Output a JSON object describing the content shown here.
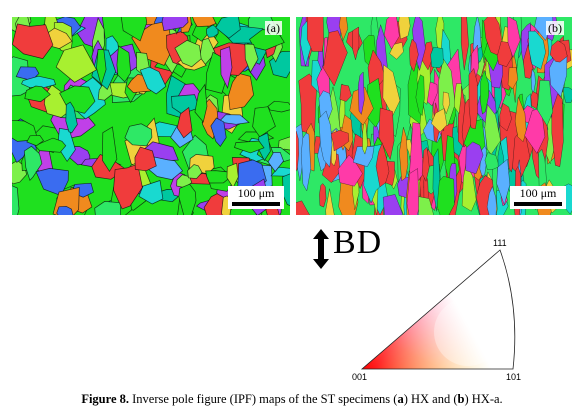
{
  "panels": [
    {
      "label": "(a)",
      "scalebar": "100 μm"
    },
    {
      "label": "(b)",
      "scalebar": "100 μm"
    }
  ],
  "build_direction": "BD",
  "ipf_key": {
    "vertex_top": "111",
    "vertex_left": "001",
    "vertex_right": "101"
  },
  "caption": {
    "figure": "Figure 8.",
    "text_1": " Inverse pole figure (IPF) maps of the ST specimens (",
    "a": "a",
    "text_2": ") HX and (",
    "b": "b",
    "text_3": ") HX-a."
  },
  "colors": {
    "ipf_001": "#ff0000",
    "ipf_101": "#00ff00",
    "ipf_111": "#0000ff",
    "grain_palette": [
      "#1fe01f",
      "#2ee866",
      "#7df04a",
      "#00c8a0",
      "#19d9d0",
      "#3a6cf0",
      "#9a3ff0",
      "#c040e8",
      "#f03c3c",
      "#f08a1e",
      "#f0d23c",
      "#ff3aa8",
      "#5ab0ff",
      "#a8f030"
    ]
  }
}
